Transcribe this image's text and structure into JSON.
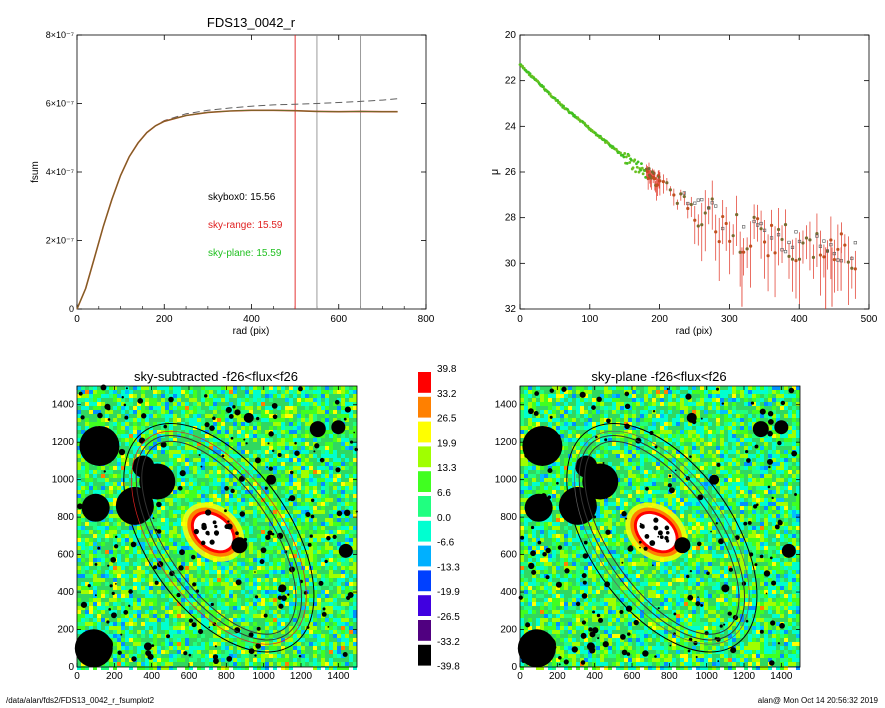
{
  "footer": {
    "path": "/data/alan/fds2/FDS13_0042_r_fsumplot2",
    "stamp": "alan@  Mon Oct 14 20:56:32 2019"
  },
  "colors": {
    "observed": "#6b6b2a",
    "model": "#606060",
    "sky_range": "#e02020",
    "sky_plane": "#20c020",
    "text": "#000000"
  },
  "colorbar": {
    "labels": [
      "39.8",
      "33.2",
      "26.5",
      "19.9",
      "13.3",
      "6.6",
      "0.0",
      "-6.6",
      "-13.3",
      "-19.9",
      "-26.5",
      "-33.2",
      "-39.8"
    ],
    "colors": [
      "#ff0000",
      "#ff8000",
      "#ffff00",
      "#a0ff00",
      "#40ff20",
      "#20ff80",
      "#00ffd0",
      "#00b0ff",
      "#0040ff",
      "#4000e0",
      "#500080",
      "#000000"
    ]
  },
  "chart_data": [
    {
      "type": "line",
      "title": "FDS13_0042_r",
      "xlabel": "rad (pix)",
      "ylabel": "fsum",
      "xlim": [
        0,
        800
      ],
      "ylim": [
        0,
        8e-07
      ],
      "xticks": [
        "0",
        "200",
        "400",
        "600",
        "800"
      ],
      "yticks": [
        "0",
        "2×10⁻⁷",
        "4×10⁻⁷",
        "6×10⁻⁷",
        "8×10⁻⁷"
      ],
      "ytick_values": [
        0,
        2e-07,
        4e-07,
        6e-07,
        8e-07
      ],
      "xtick_values": [
        0,
        200,
        400,
        600,
        800
      ],
      "vlines": [
        {
          "x": 500,
          "color": "#e02020"
        },
        {
          "x": 550,
          "color": "#909090"
        },
        {
          "x": 650,
          "color": "#909090"
        }
      ],
      "annotations": [
        {
          "text": "skybox0: 15.56",
          "color": "#000000"
        },
        {
          "text": "sky-range: 15.59",
          "color": "#e02020"
        },
        {
          "text": "sky-plane: 15.59",
          "color": "#20c020"
        }
      ],
      "series": [
        {
          "style": "dashed",
          "x": [
            0,
            20,
            40,
            60,
            80,
            100,
            120,
            140,
            160,
            180,
            200,
            250,
            300,
            350,
            400,
            450,
            500,
            550,
            600,
            650,
            700,
            735
          ],
          "y": [
            0,
            6e-08,
            1.5e-07,
            2.4e-07,
            3.2e-07,
            3.9e-07,
            4.45e-07,
            4.85e-07,
            5.15e-07,
            5.35e-07,
            5.5e-07,
            5.7e-07,
            5.8e-07,
            5.87e-07,
            5.92e-07,
            5.96e-07,
            5.98e-07,
            6e-07,
            6.03e-07,
            6.06e-07,
            6.1e-07,
            6.14e-07
          ]
        },
        {
          "style": "solid",
          "x": [
            0,
            20,
            40,
            60,
            80,
            100,
            120,
            140,
            160,
            180,
            200,
            250,
            300,
            350,
            400,
            450,
            500,
            550,
            600,
            650,
            700,
            735
          ],
          "y": [
            0,
            6e-08,
            1.5e-07,
            2.4e-07,
            3.2e-07,
            3.9e-07,
            4.45e-07,
            4.85e-07,
            5.15e-07,
            5.35e-07,
            5.48e-07,
            5.65e-07,
            5.74e-07,
            5.78e-07,
            5.8e-07,
            5.8e-07,
            5.79e-07,
            5.77e-07,
            5.76e-07,
            5.77e-07,
            5.76e-07,
            5.76e-07
          ]
        }
      ]
    },
    {
      "type": "scatter",
      "title": "",
      "xlabel": "rad (pix)",
      "ylabel": "μ",
      "xlim": [
        0,
        500
      ],
      "ylim": [
        32,
        20
      ],
      "xticks": [
        "0",
        "100",
        "200",
        "300",
        "400",
        "500"
      ],
      "xtick_values": [
        0,
        100,
        200,
        300,
        400,
        500
      ],
      "yticks": [
        "20",
        "22",
        "24",
        "26",
        "28",
        "30",
        "32"
      ],
      "ytick_values": [
        20,
        22,
        24,
        26,
        28,
        30,
        32
      ],
      "profile": {
        "x": [
          0,
          20,
          40,
          60,
          80,
          100,
          120,
          140,
          160,
          180,
          200,
          220,
          240,
          260,
          280,
          300,
          320,
          340,
          360,
          380,
          400,
          420,
          440,
          460,
          480
        ],
        "y": [
          21.3,
          21.9,
          22.5,
          23.1,
          23.6,
          24.1,
          24.6,
          25.1,
          25.6,
          26.0,
          26.5,
          27.0,
          27.4,
          27.8,
          28.1,
          28.5,
          28.7,
          28.9,
          29.0,
          29.2,
          29.3,
          29.4,
          29.5,
          29.6,
          29.7
        ]
      }
    },
    {
      "type": "heatmap",
      "title": "sky-subtracted -f26<flux<f26",
      "xlim": [
        0,
        1500
      ],
      "ylim": [
        0,
        1500
      ],
      "xticks": [
        "0",
        "200",
        "400",
        "600",
        "800",
        "1000",
        "1200",
        "1400"
      ],
      "yticks": [
        "0",
        "200",
        "400",
        "600",
        "800",
        "1000",
        "1200",
        "1400"
      ],
      "tick_values": [
        0,
        200,
        400,
        600,
        800,
        1000,
        1200,
        1400
      ]
    },
    {
      "type": "heatmap",
      "title": "sky-plane -f26<flux<f26",
      "xlim": [
        0,
        1500
      ],
      "ylim": [
        0,
        1500
      ],
      "xticks": [
        "0",
        "200",
        "400",
        "600",
        "800",
        "1000",
        "1200",
        "1400"
      ],
      "yticks": [
        "0",
        "200",
        "400",
        "600",
        "800",
        "1000",
        "1200",
        "1400"
      ],
      "tick_values": [
        0,
        200,
        400,
        600,
        800,
        1000,
        1200,
        1400
      ]
    }
  ]
}
